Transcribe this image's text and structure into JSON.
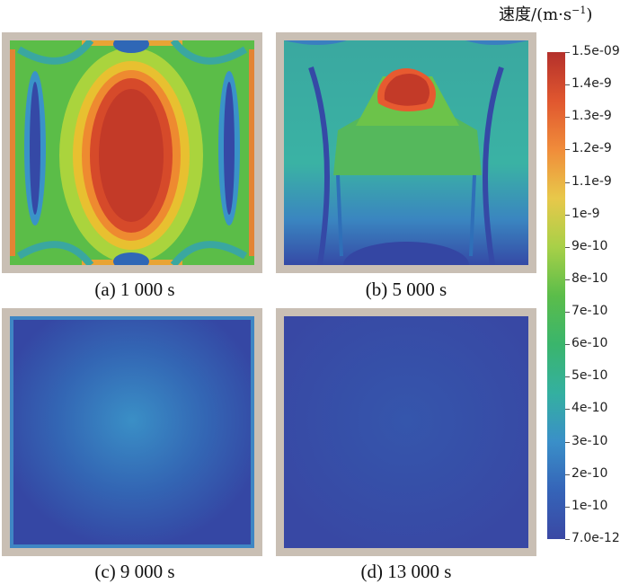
{
  "colorbar": {
    "title": "速度/(m·s",
    "title_sup": "−1",
    "title_close": ")",
    "labels": [
      "1.5e-09",
      "1.4e-9",
      "1.3e-9",
      "1.2e-9",
      "1.1e-9",
      "1e-9",
      "9e-10",
      "8e-10",
      "7e-10",
      "6e-10",
      "5e-10",
      "4e-10",
      "3e-10",
      "2e-10",
      "1e-10",
      "7.0e-12"
    ],
    "colors": [
      "#b4302b",
      "#e0572f",
      "#f08c3a",
      "#e8c84a",
      "#a8d048",
      "#5bbd4a",
      "#3ab56c",
      "#34b0a0",
      "#3a8fc8",
      "#3564b8",
      "#3a48a4"
    ]
  },
  "panels": [
    {
      "id": "a",
      "caption": "(a) 1 000 s"
    },
    {
      "id": "b",
      "caption": "(b) 5 000 s"
    },
    {
      "id": "c",
      "caption": "(c) 9 000 s"
    },
    {
      "id": "d",
      "caption": "(d) 13 000 s"
    }
  ]
}
